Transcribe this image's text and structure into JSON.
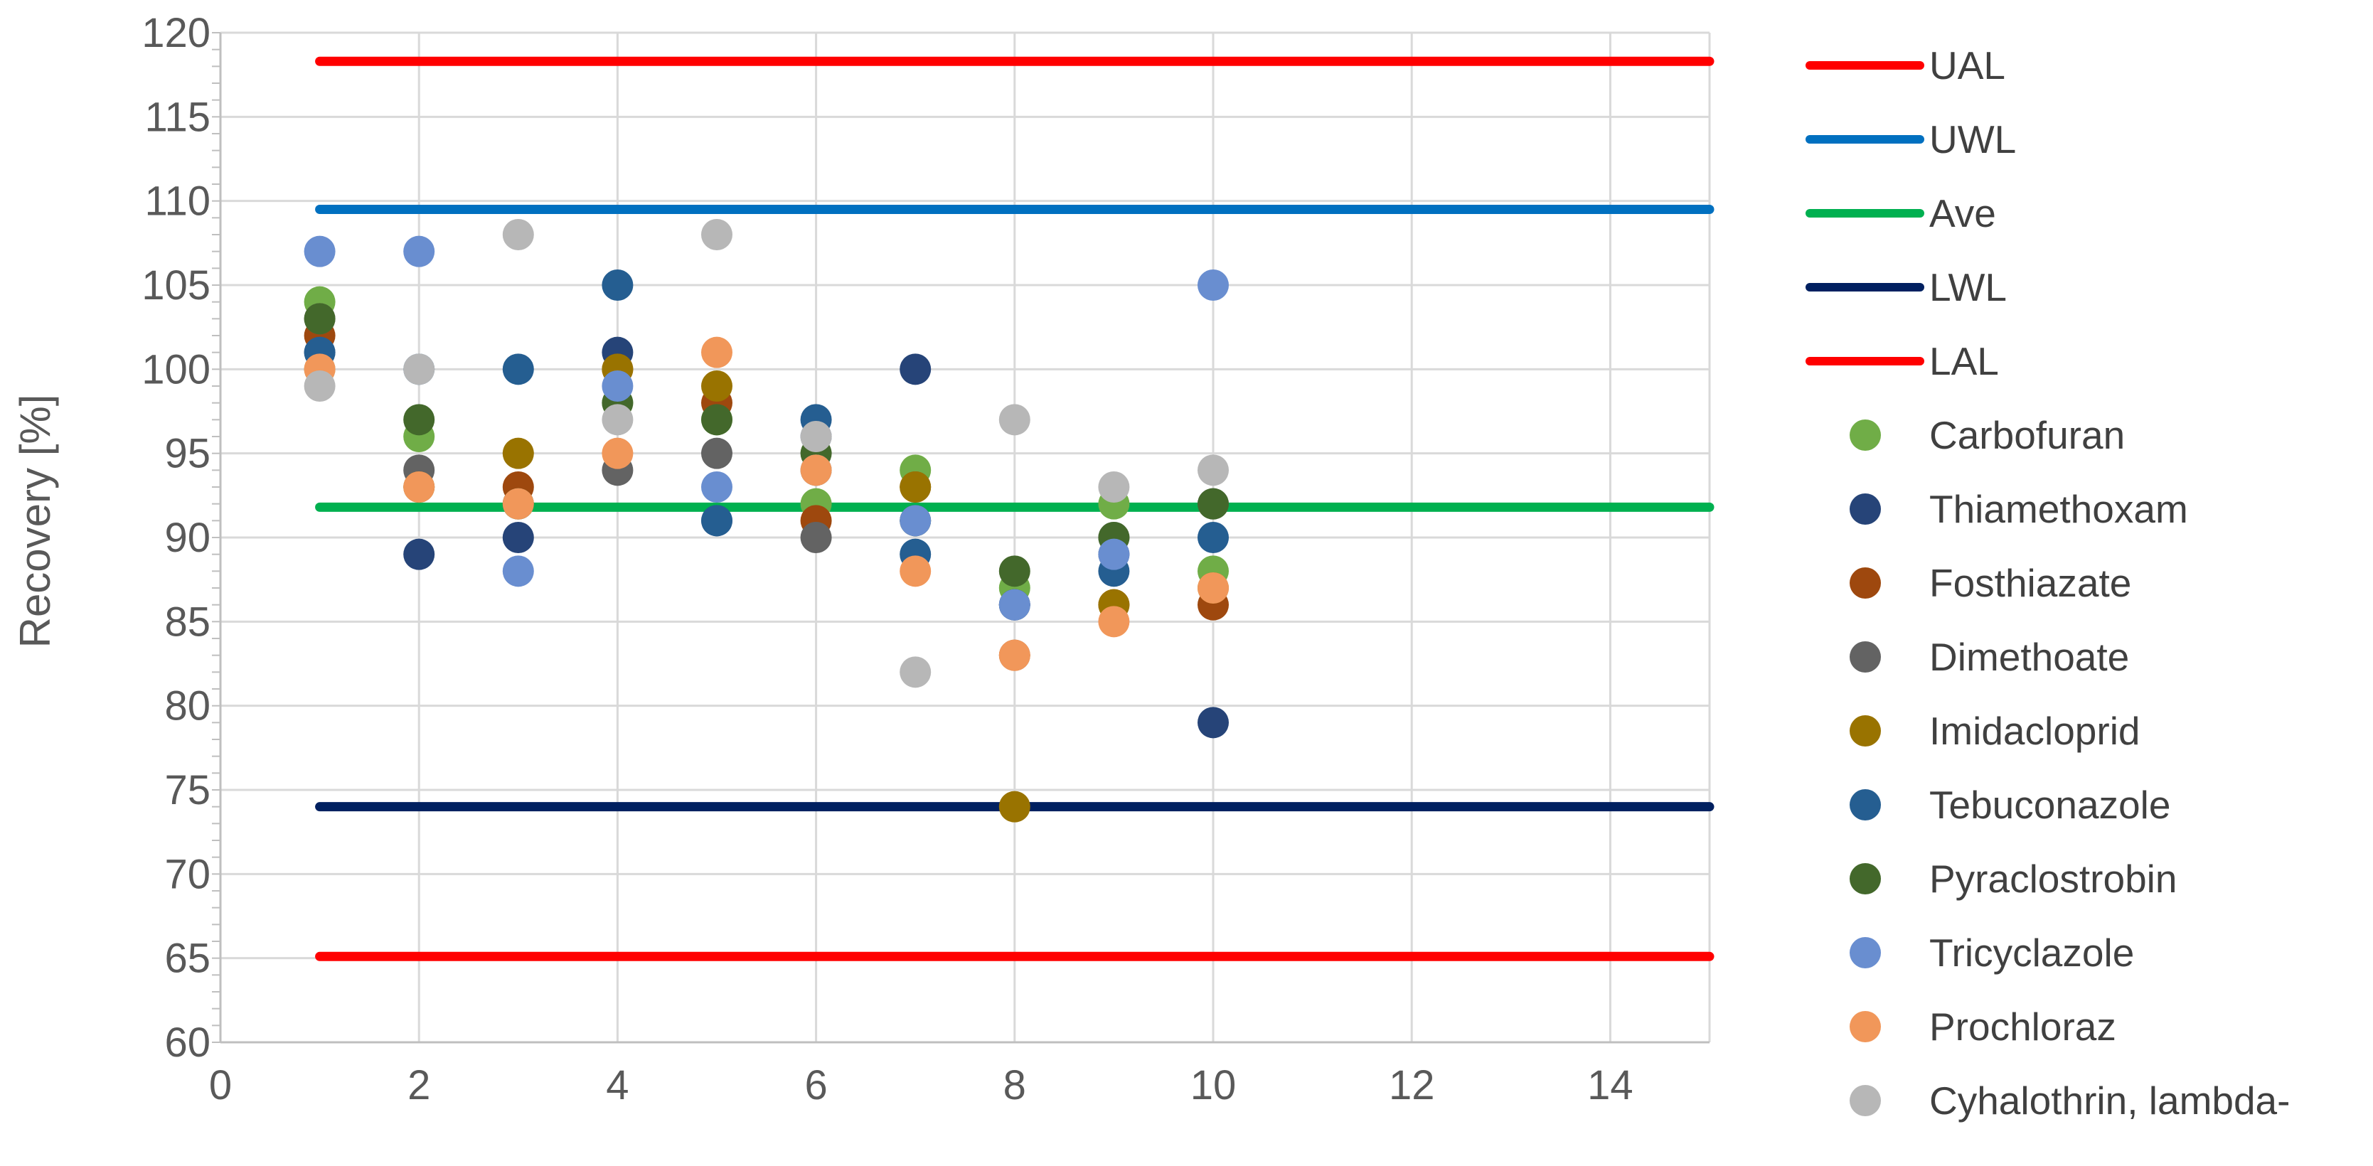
{
  "chart_data": {
    "type": "scatter",
    "title": "",
    "xlabel": "",
    "ylabel": "Recovery [%]",
    "xlim": [
      0,
      15
    ],
    "ylim": [
      60,
      120
    ],
    "x_ticks": [
      0,
      2,
      4,
      6,
      8,
      10,
      12,
      14
    ],
    "y_ticks": [
      60,
      65,
      70,
      75,
      80,
      85,
      90,
      95,
      100,
      105,
      110,
      115,
      120
    ],
    "grid": true,
    "legend_position": "right",
    "reference_lines": [
      {
        "name": "UAL",
        "y": 118.3,
        "x_range": [
          1,
          15
        ],
        "color": "#ff0000"
      },
      {
        "name": "UWL",
        "y": 109.5,
        "x_range": [
          1,
          15
        ],
        "color": "#0070c0"
      },
      {
        "name": "Ave",
        "y": 91.8,
        "x_range": [
          1,
          15
        ],
        "color": "#00b050"
      },
      {
        "name": "LWL",
        "y": 74.0,
        "x_range": [
          1,
          15
        ],
        "color": "#002060"
      },
      {
        "name": "LAL",
        "y": 65.1,
        "x_range": [
          1,
          15
        ],
        "color": "#ff0000"
      }
    ],
    "series": [
      {
        "name": "Carbofuran",
        "color": "#70ad47",
        "points": [
          [
            1,
            104
          ],
          [
            2,
            96
          ],
          [
            3,
            92
          ],
          [
            4,
            98
          ],
          [
            5,
            97
          ],
          [
            6,
            92
          ],
          [
            7,
            94
          ],
          [
            8,
            87
          ],
          [
            9,
            92
          ],
          [
            10,
            88
          ]
        ]
      },
      {
        "name": "Thiamethoxam",
        "color": "#264478",
        "points": [
          [
            1,
            101
          ],
          [
            2,
            89
          ],
          [
            3,
            90
          ],
          [
            4,
            101
          ],
          [
            5,
            91
          ],
          [
            6,
            96
          ],
          [
            7,
            100
          ],
          [
            8,
            86
          ],
          [
            9,
            89
          ],
          [
            10,
            79
          ]
        ]
      },
      {
        "name": "Fosthiazate",
        "color": "#9e480e",
        "points": [
          [
            1,
            102
          ],
          [
            2,
            93
          ],
          [
            3,
            93
          ],
          [
            4,
            100
          ],
          [
            5,
            98
          ],
          [
            6,
            91
          ],
          [
            7,
            93
          ],
          [
            8,
            83
          ],
          [
            9,
            86
          ],
          [
            10,
            86
          ]
        ]
      },
      {
        "name": "Dimethoate",
        "color": "#636363",
        "points": [
          [
            1,
            103
          ],
          [
            2,
            94
          ],
          [
            3,
            92
          ],
          [
            4,
            94
          ],
          [
            5,
            95
          ],
          [
            6,
            90
          ],
          [
            7,
            91
          ],
          [
            8,
            86
          ],
          [
            9,
            90
          ],
          [
            10,
            92
          ]
        ]
      },
      {
        "name": "Imidacloprid",
        "color": "#997300",
        "points": [
          [
            1,
            100
          ],
          [
            2,
            93
          ],
          [
            3,
            95
          ],
          [
            4,
            100
          ],
          [
            5,
            99
          ],
          [
            6,
            94
          ],
          [
            7,
            93
          ],
          [
            8,
            74
          ],
          [
            9,
            86
          ],
          [
            10,
            87
          ]
        ]
      },
      {
        "name": "Tebuconazole",
        "color": "#255e91",
        "points": [
          [
            1,
            101
          ],
          [
            2,
            100
          ],
          [
            3,
            100
          ],
          [
            4,
            105
          ],
          [
            5,
            91
          ],
          [
            6,
            97
          ],
          [
            7,
            89
          ],
          [
            8,
            86
          ],
          [
            9,
            88
          ],
          [
            10,
            90
          ]
        ]
      },
      {
        "name": "Pyraclostrobin",
        "color": "#43682b",
        "points": [
          [
            1,
            103
          ],
          [
            2,
            97
          ],
          [
            3,
            92
          ],
          [
            4,
            98
          ],
          [
            5,
            97
          ],
          [
            6,
            95
          ],
          [
            7,
            91
          ],
          [
            8,
            88
          ],
          [
            9,
            90
          ],
          [
            10,
            92
          ]
        ]
      },
      {
        "name": "Tricyclazole",
        "color": "#698ed0",
        "points": [
          [
            1,
            107
          ],
          [
            2,
            107
          ],
          [
            3,
            88
          ],
          [
            4,
            99
          ],
          [
            5,
            93
          ],
          [
            6,
            94
          ],
          [
            7,
            91
          ],
          [
            8,
            86
          ],
          [
            9,
            89
          ],
          [
            10,
            105
          ]
        ]
      },
      {
        "name": "Prochloraz",
        "color": "#f1975a",
        "points": [
          [
            1,
            100
          ],
          [
            2,
            93
          ],
          [
            3,
            92
          ],
          [
            4,
            95
          ],
          [
            5,
            101
          ],
          [
            6,
            94
          ],
          [
            7,
            88
          ],
          [
            8,
            83
          ],
          [
            9,
            85
          ],
          [
            10,
            87
          ]
        ]
      },
      {
        "name": "Cyhalothrin, lambda-",
        "color": "#b7b7b7",
        "points": [
          [
            1,
            99
          ],
          [
            2,
            100
          ],
          [
            3,
            108
          ],
          [
            4,
            97
          ],
          [
            5,
            108
          ],
          [
            6,
            96
          ],
          [
            7,
            82
          ],
          [
            8,
            97
          ],
          [
            9,
            93
          ],
          [
            10,
            94
          ]
        ]
      }
    ]
  }
}
